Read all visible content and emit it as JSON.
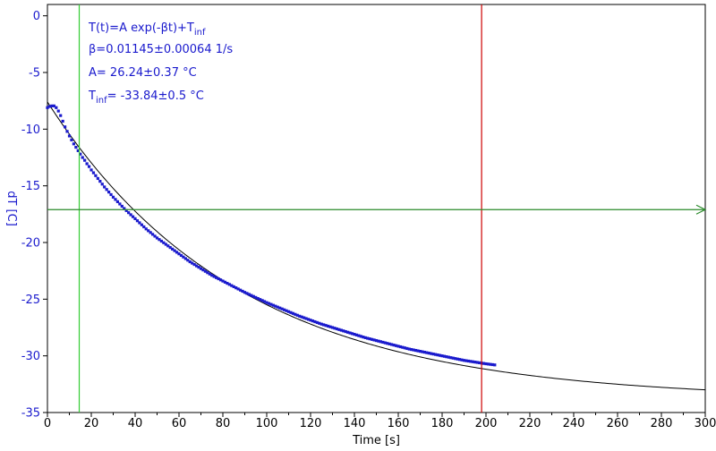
{
  "chart_data": {
    "type": "scatter",
    "xlabel": "Time [s]",
    "ylabel": "dT [C]",
    "xlim": [
      0,
      300
    ],
    "ylim": [
      -35,
      1
    ],
    "xticks": [
      0,
      20,
      40,
      60,
      80,
      100,
      120,
      140,
      160,
      180,
      200,
      220,
      240,
      260,
      280,
      300
    ],
    "yticks": [
      0,
      -5,
      -10,
      -15,
      -20,
      -25,
      -30,
      -35
    ],
    "grid": false,
    "colors": {
      "data": "#1a1acd",
      "fit": "#000000",
      "ylabel": "#1a1acd",
      "annotation": "#1a1acd",
      "green_cursor": "#33cc33",
      "red_cursor": "#cc0000",
      "hline": "#2a8a2a"
    },
    "fit_equation": "T(t)=A exp(-βt)+T_inf",
    "fit_params": {
      "beta": "β=0.01145±0.00064 1/s",
      "A": "A= 26.24±0.37 °C",
      "T_inf": "T_inf= -33.84±0.5 °C"
    },
    "fit_model": {
      "A": 26.24,
      "beta": 0.01145,
      "T_inf": -33.84
    },
    "fit_range": [
      0,
      300
    ],
    "data_range": [
      0,
      204
    ],
    "green_cursor_x": 14.5,
    "red_cursor_x": 198,
    "horizontal_arrow_y": -17.1,
    "series": [
      {
        "name": "",
        "points": [
          [
            0,
            -8.1
          ],
          [
            1,
            -8.0
          ],
          [
            2,
            -7.95
          ],
          [
            3,
            -7.95
          ],
          [
            4,
            -8.1
          ],
          [
            5,
            -8.4
          ],
          [
            6,
            -8.8
          ],
          [
            7,
            -9.3
          ],
          [
            8,
            -9.8
          ],
          [
            9,
            -10.2
          ],
          [
            10,
            -10.6
          ],
          [
            11,
            -10.95
          ],
          [
            12,
            -11.3
          ],
          [
            13,
            -11.6
          ],
          [
            14,
            -11.9
          ],
          [
            15,
            -12.2
          ],
          [
            16,
            -12.5
          ],
          [
            17,
            -12.75
          ],
          [
            18,
            -13.05
          ],
          [
            19,
            -13.3
          ],
          [
            20,
            -13.6
          ],
          [
            22,
            -14.1
          ],
          [
            24,
            -14.6
          ],
          [
            26,
            -15.1
          ],
          [
            28,
            -15.55
          ],
          [
            30,
            -16.0
          ],
          [
            32,
            -16.4
          ],
          [
            35,
            -17.0
          ],
          [
            38,
            -17.55
          ],
          [
            40,
            -17.9
          ],
          [
            45,
            -18.8
          ],
          [
            50,
            -19.6
          ],
          [
            55,
            -20.3
          ],
          [
            60,
            -21.0
          ],
          [
            65,
            -21.7
          ],
          [
            70,
            -22.3
          ],
          [
            75,
            -22.9
          ],
          [
            80,
            -23.4
          ],
          [
            85,
            -23.9
          ],
          [
            90,
            -24.4
          ],
          [
            95,
            -24.85
          ],
          [
            100,
            -25.3
          ],
          [
            105,
            -25.7
          ],
          [
            110,
            -26.1
          ],
          [
            115,
            -26.5
          ],
          [
            120,
            -26.85
          ],
          [
            125,
            -27.2
          ],
          [
            130,
            -27.5
          ],
          [
            135,
            -27.8
          ],
          [
            140,
            -28.1
          ],
          [
            145,
            -28.4
          ],
          [
            150,
            -28.65
          ],
          [
            155,
            -28.9
          ],
          [
            160,
            -29.15
          ],
          [
            165,
            -29.4
          ],
          [
            170,
            -29.6
          ],
          [
            175,
            -29.8
          ],
          [
            180,
            -30.0
          ],
          [
            185,
            -30.2
          ],
          [
            190,
            -30.4
          ],
          [
            195,
            -30.55
          ],
          [
            200,
            -30.7
          ],
          [
            204,
            -30.8
          ]
        ]
      }
    ]
  }
}
